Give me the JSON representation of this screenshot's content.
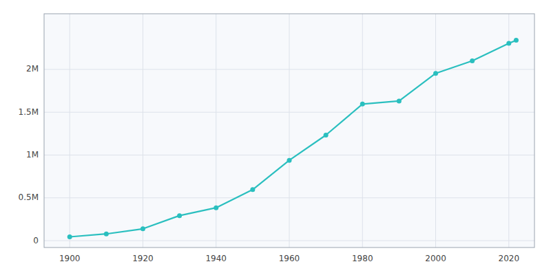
{
  "chart_data": {
    "type": "line",
    "x": [
      1900,
      1910,
      1920,
      1930,
      1940,
      1950,
      1960,
      1970,
      1980,
      1990,
      2000,
      2010,
      2020,
      2022
    ],
    "values": [
      44633,
      78800,
      138276,
      292352,
      384514,
      596163,
      938219,
      1232802,
      1595138,
      1630553,
      1953631,
      2099451,
      2304580,
      2340000
    ],
    "color": "#2abfbf",
    "marker": "circle",
    "xlim": [
      1893,
      2027
    ],
    "ylim": [
      -80000,
      2650000
    ],
    "xticks": [
      1900,
      1920,
      1940,
      1960,
      1980,
      2000,
      2020
    ],
    "yticks": [
      0,
      {
        "value": 500000,
        "label": "0.5M"
      },
      {
        "value": 1000000,
        "label": "1M"
      },
      {
        "value": 1500000,
        "label": "1.5M"
      },
      {
        "value": 2000000,
        "label": "2M"
      }
    ],
    "grid": true
  }
}
